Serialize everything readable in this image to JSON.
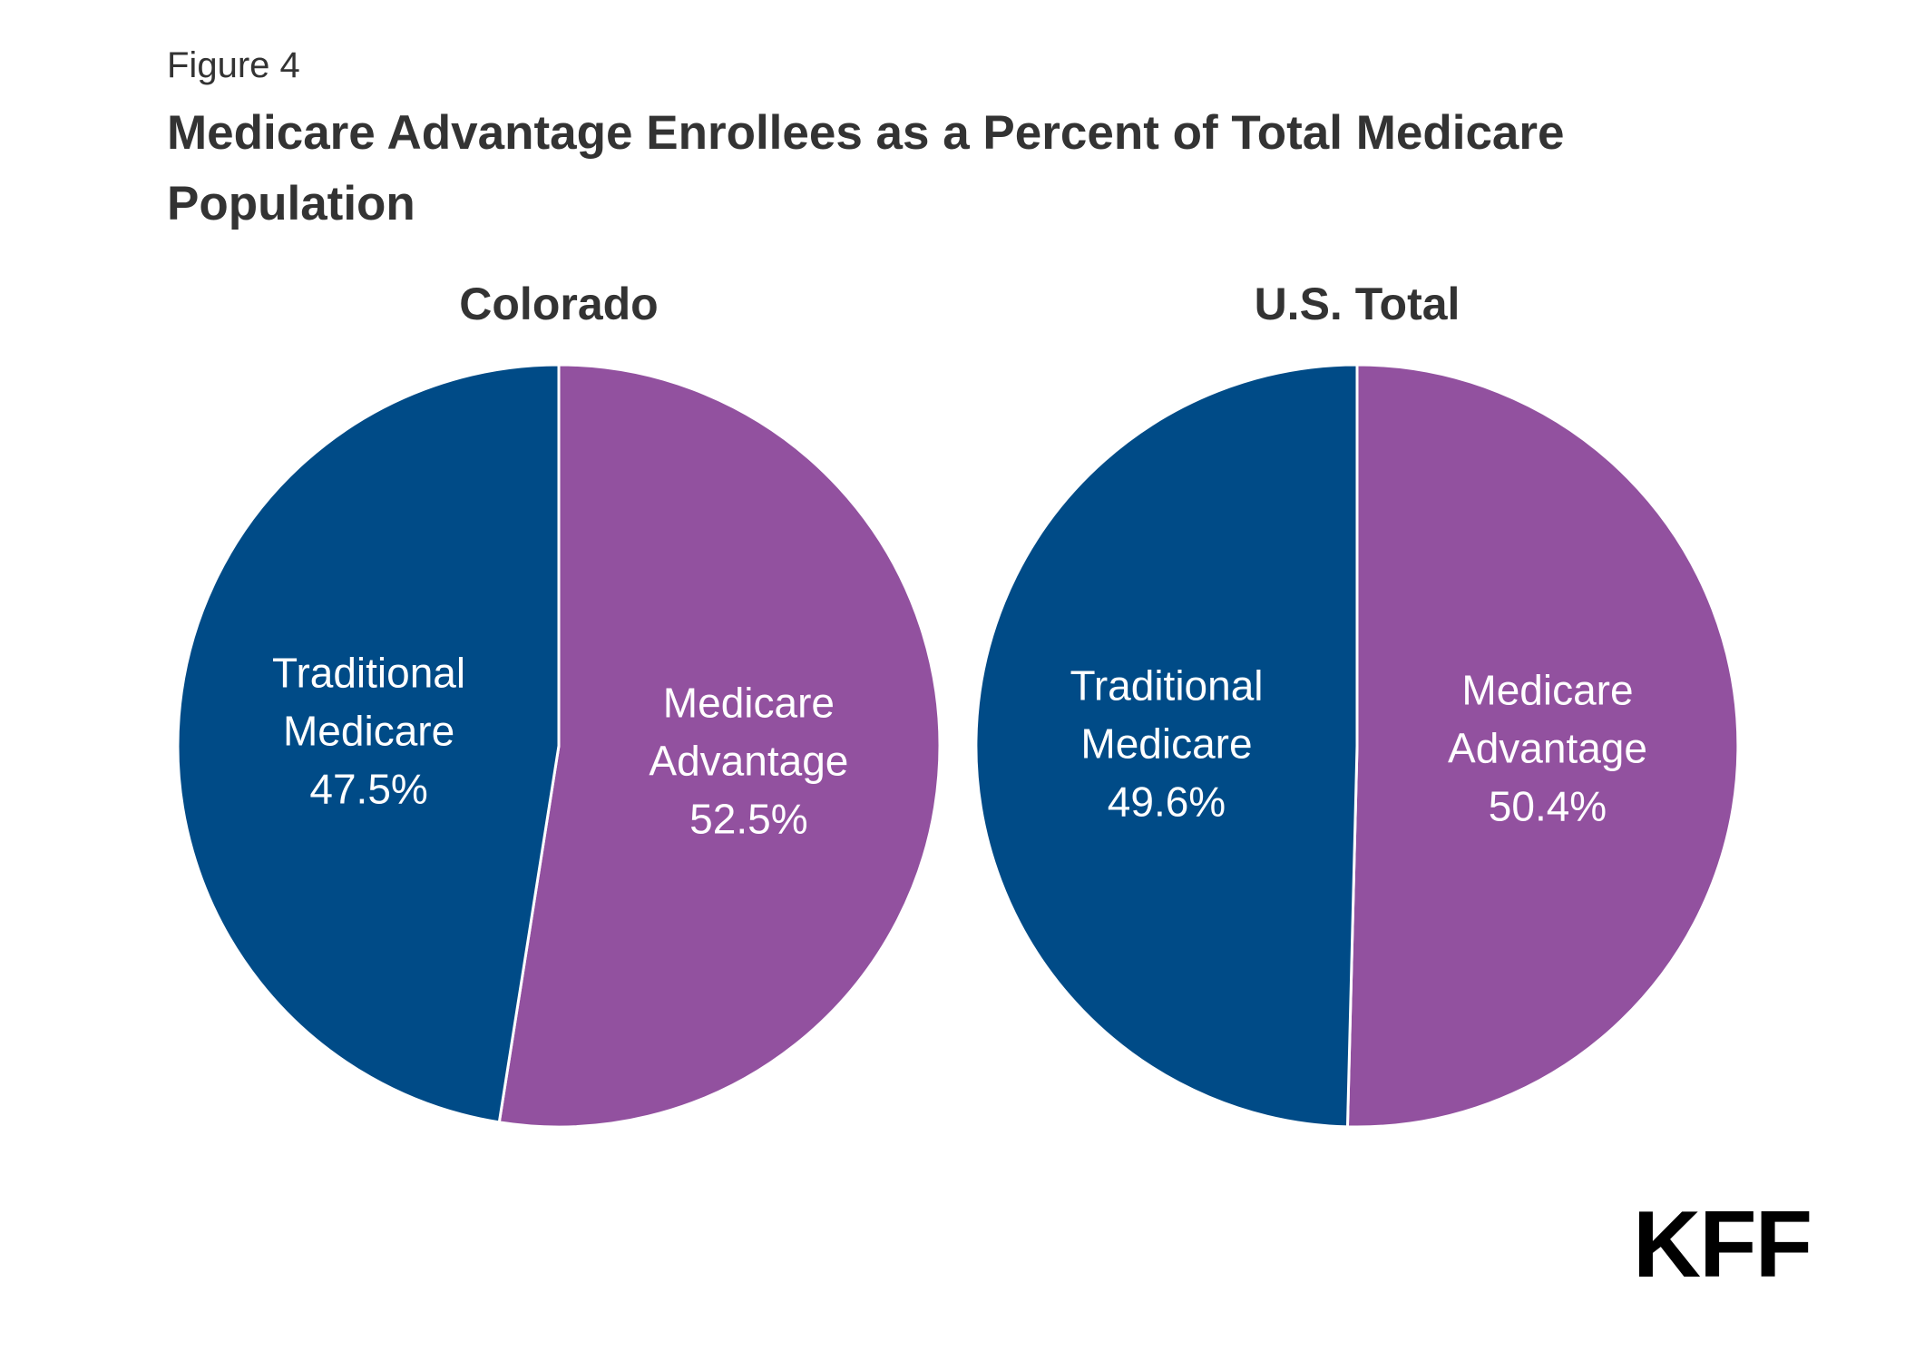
{
  "figure_label": "Figure 4",
  "title": "Medicare Advantage Enrollees as a Percent of Total Medicare Population",
  "logo_text": "KFF",
  "colors": {
    "traditional": "#004B87",
    "advantage": "#92519F",
    "separator": "#ffffff"
  },
  "chart_data": [
    {
      "type": "pie",
      "title": "Colorado",
      "slices": [
        {
          "label_lines": [
            "Medicare",
            "Advantage"
          ],
          "value_text": "52.5%",
          "value": 52.5,
          "color": "#92519F"
        },
        {
          "label_lines": [
            "Traditional",
            "Medicare"
          ],
          "value_text": "47.5%",
          "value": 47.5,
          "color": "#004B87"
        }
      ]
    },
    {
      "type": "pie",
      "title": "U.S. Total",
      "slices": [
        {
          "label_lines": [
            "Medicare",
            "Advantage"
          ],
          "value_text": "50.4%",
          "value": 50.4,
          "color": "#92519F"
        },
        {
          "label_lines": [
            "Traditional",
            "Medicare"
          ],
          "value_text": "49.6%",
          "value": 49.6,
          "color": "#004B87"
        }
      ]
    }
  ]
}
